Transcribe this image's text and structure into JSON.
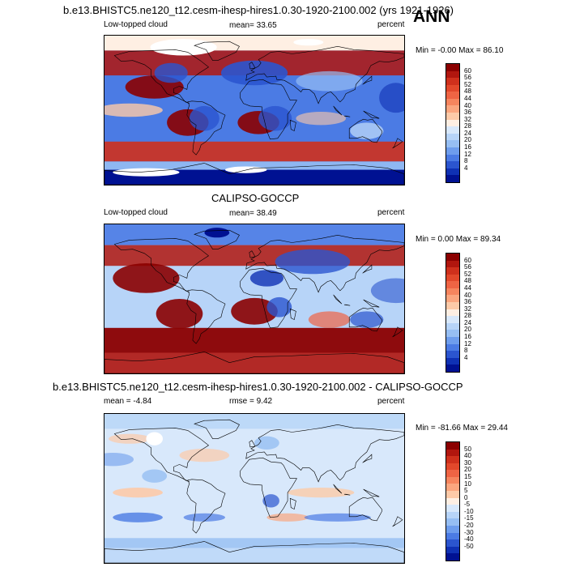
{
  "season": "ANN",
  "panels": [
    {
      "id": "model",
      "title": "b.e13.BHISTC5.ne120_t12.cesm-ihesp-hires1.0.30-1920-2100.002 (yrs 1921-1926)",
      "left_label": "Low-topped cloud",
      "stat_text": "mean=  33.65",
      "unit": "percent",
      "minmax": "Min =  -0.00 Max =  86.10",
      "kind": "model",
      "colorbar": {
        "labels": [
          "60",
          "56",
          "52",
          "48",
          "44",
          "40",
          "36",
          "32",
          "28",
          "24",
          "20",
          "16",
          "12",
          "8",
          "4"
        ],
        "colors": [
          "#8b0000",
          "#b1160e",
          "#cf301c",
          "#e2482b",
          "#ef6444",
          "#f6855e",
          "#fba67f",
          "#fdcaa8",
          "#feefe3",
          "#d8e8fb",
          "#b7d4f8",
          "#96bef3",
          "#6e9ded",
          "#4b7be4",
          "#2b55cf",
          "#0f31b4",
          "#001192"
        ]
      }
    },
    {
      "id": "obs",
      "title": "CALIPSO-GOCCP",
      "left_label": "Low-topped cloud",
      "stat_text": "mean=  38.49",
      "unit": "percent",
      "minmax": "Min =   0.00 Max =  89.34",
      "kind": "obs",
      "colorbar": {
        "labels": [
          "60",
          "56",
          "52",
          "48",
          "44",
          "40",
          "36",
          "32",
          "28",
          "24",
          "20",
          "16",
          "12",
          "8",
          "4"
        ],
        "colors": [
          "#8b0000",
          "#b1160e",
          "#cf301c",
          "#e2482b",
          "#ef6444",
          "#f6855e",
          "#fba67f",
          "#fdcaa8",
          "#feefe3",
          "#d8e8fb",
          "#b7d4f8",
          "#96bef3",
          "#6e9ded",
          "#4b7be4",
          "#2b55cf",
          "#0f31b4",
          "#001192"
        ]
      }
    },
    {
      "id": "diff",
      "title": "b.e13.BHISTC5.ne120_t12.cesm-ihesp-hires1.0.30-1920-2100.002 - CALIPSO-GOCCP",
      "left_label": "mean =  -4.84",
      "stat_text": "rmse =   9.42",
      "unit": "percent",
      "minmax": "Min = -81.66 Max =  29.44",
      "kind": "diff",
      "colorbar": {
        "labels": [
          "50",
          "40",
          "30",
          "20",
          "15",
          "10",
          "5",
          "0",
          "-5",
          "-10",
          "-15",
          "-20",
          "-30",
          "-40",
          "-50"
        ],
        "colors": [
          "#8b0000",
          "#b1160e",
          "#cf301c",
          "#e2482b",
          "#ef6444",
          "#f6855e",
          "#fba67f",
          "#fdcaa8",
          "#feefe3",
          "#d8e8fb",
          "#b7d4f8",
          "#96bef3",
          "#6e9ded",
          "#4b7be4",
          "#2b55cf",
          "#0f31b4",
          "#001192"
        ]
      }
    }
  ]
}
